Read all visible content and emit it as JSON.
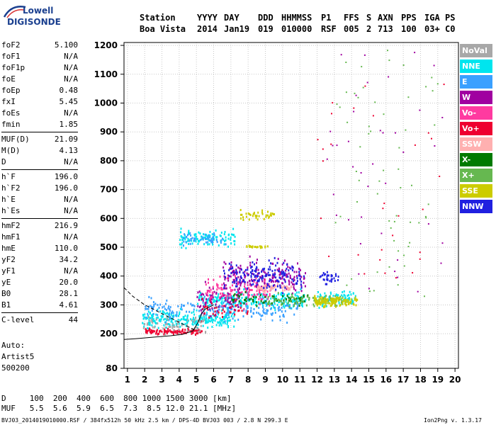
{
  "logo": {
    "line1": "Lowell",
    "line2": "DIGISONDE"
  },
  "header": {
    "row1": [
      "Station",
      "YYYY",
      "DAY",
      "DDD",
      "HHMMSS",
      "P1",
      "FFS",
      "S",
      "AXN",
      "PPS",
      "IGA",
      "PS"
    ],
    "row2": [
      "Boa Vista",
      "2014",
      "Jan19",
      "019",
      "010000",
      "RSF",
      "005",
      "2",
      "713",
      "100",
      "03+",
      "C0"
    ]
  },
  "params": {
    "group1": [
      {
        "label": "foF2",
        "value": "5.100"
      },
      {
        "label": "foF1",
        "value": "N/A"
      },
      {
        "label": "foF1p",
        "value": "N/A"
      },
      {
        "label": "foE",
        "value": "N/A"
      },
      {
        "label": "foEp",
        "value": "0.48"
      },
      {
        "label": "fxI",
        "value": "5.45"
      },
      {
        "label": "foEs",
        "value": "N/A"
      },
      {
        "label": "fmin",
        "value": "1.85"
      }
    ],
    "group2": [
      {
        "label": "MUF(D)",
        "value": "21.09"
      },
      {
        "label": "M(D)",
        "value": "4.13"
      },
      {
        "label": "D",
        "value": "N/A"
      }
    ],
    "group3": [
      {
        "label": "h`F",
        "value": "196.0"
      },
      {
        "label": "h`F2",
        "value": "196.0"
      },
      {
        "label": "h`E",
        "value": "N/A"
      },
      {
        "label": "h`Es",
        "value": "N/A"
      }
    ],
    "group4": [
      {
        "label": "hmF2",
        "value": "216.9"
      },
      {
        "label": "hmF1",
        "value": "N/A"
      },
      {
        "label": "hmE",
        "value": "110.0"
      },
      {
        "label": "yF2",
        "value": "34.2"
      },
      {
        "label": "yF1",
        "value": "N/A"
      },
      {
        "label": "yE",
        "value": "20.0"
      },
      {
        "label": "B0",
        "value": "28.1"
      },
      {
        "label": "B1",
        "value": "4.61"
      }
    ],
    "group5": [
      {
        "label": "C-level",
        "value": "44"
      }
    ]
  },
  "auto": {
    "line1": "Auto:",
    "line2": "Artist5",
    "line3": "500200"
  },
  "distance_table": {
    "row_d": "D     100  200  400  600  800 1000 1500 3000 [km]",
    "row_muf": "MUF   5.5  5.6  5.9  6.5  7.3  8.5 12.0 21.1 [MHz]"
  },
  "footer": {
    "left": "BVJ03_2014019010000.RSF / 384fx512h 50 kHz 2.5 km / DPS-4D BVJ03 003 / 2.8 N 299.3 E",
    "right": "Ion2Png v. 1.3.17"
  },
  "legend": [
    {
      "label": "NoVal",
      "color": "#a8a8a8"
    },
    {
      "label": "NNE",
      "color": "#00e5ee"
    },
    {
      "label": "E",
      "color": "#3aa0ff"
    },
    {
      "label": "W",
      "color": "#a000a0"
    },
    {
      "label": "Vo-",
      "color": "#ff3aa0"
    },
    {
      "label": "Vo+",
      "color": "#ee0030"
    },
    {
      "label": "SSW",
      "color": "#ffb0b0"
    },
    {
      "label": "X-",
      "color": "#007a00"
    },
    {
      "label": "X+",
      "color": "#66b850"
    },
    {
      "label": "SSE",
      "color": "#cccc00"
    },
    {
      "label": "NNW",
      "color": "#2020e0"
    }
  ],
  "chart_data": {
    "type": "scatter",
    "title": "",
    "xlabel": "",
    "ylabel": "",
    "xlim": [
      0.8,
      20.2
    ],
    "ylim": [
      80,
      1210
    ],
    "x_ticks": [
      1,
      2,
      3,
      4,
      5,
      6,
      7,
      8,
      9,
      10,
      11,
      12,
      13,
      14,
      15,
      16,
      17,
      18,
      19,
      20
    ],
    "y_ticks": [
      80,
      200,
      300,
      400,
      500,
      600,
      700,
      800,
      900,
      1000,
      1100,
      1200
    ],
    "grid": true,
    "legend_position": "right",
    "clusters": [
      {
        "series": "NNE",
        "x": [
          1.8,
          7.2
        ],
        "y": [
          210,
          300
        ],
        "count": 260
      },
      {
        "series": "NNE",
        "x": [
          4.0,
          7.2
        ],
        "y": [
          490,
          580
        ],
        "count": 110
      },
      {
        "series": "NNE",
        "x": [
          5.0,
          11.5
        ],
        "y": [
          280,
          360
        ],
        "count": 260
      },
      {
        "series": "NNE",
        "x": [
          12.0,
          14.2
        ],
        "y": [
          290,
          360
        ],
        "count": 90
      },
      {
        "series": "E",
        "x": [
          2.0,
          11.0
        ],
        "y": [
          230,
          340
        ],
        "count": 200
      },
      {
        "series": "E",
        "x": [
          4.2,
          6.8
        ],
        "y": [
          500,
          560
        ],
        "count": 50
      },
      {
        "series": "W",
        "x": [
          6.5,
          11.3
        ],
        "y": [
          320,
          480
        ],
        "count": 200
      },
      {
        "series": "W",
        "x": [
          5.0,
          7.5
        ],
        "y": [
          240,
          400
        ],
        "count": 80
      },
      {
        "series": "Vo-",
        "x": [
          5.5,
          9.5
        ],
        "y": [
          280,
          420
        ],
        "count": 120
      },
      {
        "series": "Vo+",
        "x": [
          2.0,
          5.3
        ],
        "y": [
          195,
          225
        ],
        "count": 110
      },
      {
        "series": "Vo+",
        "x": [
          5.2,
          8.0
        ],
        "y": [
          240,
          330
        ],
        "count": 40
      },
      {
        "series": "SSW",
        "x": [
          8.5,
          10.5
        ],
        "y": [
          340,
          380
        ],
        "count": 60
      },
      {
        "series": "X-",
        "x": [
          7.0,
          11.5
        ],
        "y": [
          290,
          360
        ],
        "count": 60
      },
      {
        "series": "X+",
        "x": [
          9.0,
          13.5
        ],
        "y": [
          290,
          350
        ],
        "count": 80
      },
      {
        "series": "SSE",
        "x": [
          7.5,
          9.5
        ],
        "y": [
          590,
          640
        ],
        "count": 40
      },
      {
        "series": "SSE",
        "x": [
          11.8,
          14.3
        ],
        "y": [
          290,
          340
        ],
        "count": 140
      },
      {
        "series": "SSE",
        "x": [
          7.8,
          9.2
        ],
        "y": [
          500,
          510
        ],
        "count": 20
      },
      {
        "series": "NNW",
        "x": [
          6.5,
          11.2
        ],
        "y": [
          330,
          480
        ],
        "count": 160
      },
      {
        "series": "NNW",
        "x": [
          12.0,
          13.2
        ],
        "y": [
          360,
          430
        ],
        "count": 30
      },
      {
        "series": "NoVal",
        "x": [
          1.8,
          5.5
        ],
        "y": [
          190,
          280
        ],
        "count": 60
      },
      {
        "series": "X+",
        "x": [
          13.0,
          19.0
        ],
        "y": [
          300,
          1200
        ],
        "count": 60
      },
      {
        "series": "W",
        "x": [
          12.5,
          19.5
        ],
        "y": [
          300,
          1180
        ],
        "count": 40
      },
      {
        "series": "Vo+",
        "x": [
          12.0,
          19.5
        ],
        "y": [
          350,
          1150
        ],
        "count": 30
      }
    ],
    "trace_lines": [
      {
        "style": "dashed",
        "points": [
          [
            0.8,
            360
          ],
          [
            1.3,
            330
          ],
          [
            2.0,
            300
          ],
          [
            2.5,
            285
          ],
          [
            3.0,
            270
          ],
          [
            3.5,
            255
          ],
          [
            4.0,
            240
          ],
          [
            4.5,
            225
          ],
          [
            5.0,
            210
          ]
        ]
      },
      {
        "style": "solid",
        "points": [
          [
            0.8,
            180
          ],
          [
            1.5,
            183
          ],
          [
            2.5,
            188
          ],
          [
            3.5,
            193
          ],
          [
            4.2,
            198
          ],
          [
            4.8,
            210
          ],
          [
            5.1,
            240
          ],
          [
            5.3,
            270
          ],
          [
            5.5,
            285
          ],
          [
            6.0,
            300
          ]
        ]
      }
    ]
  }
}
